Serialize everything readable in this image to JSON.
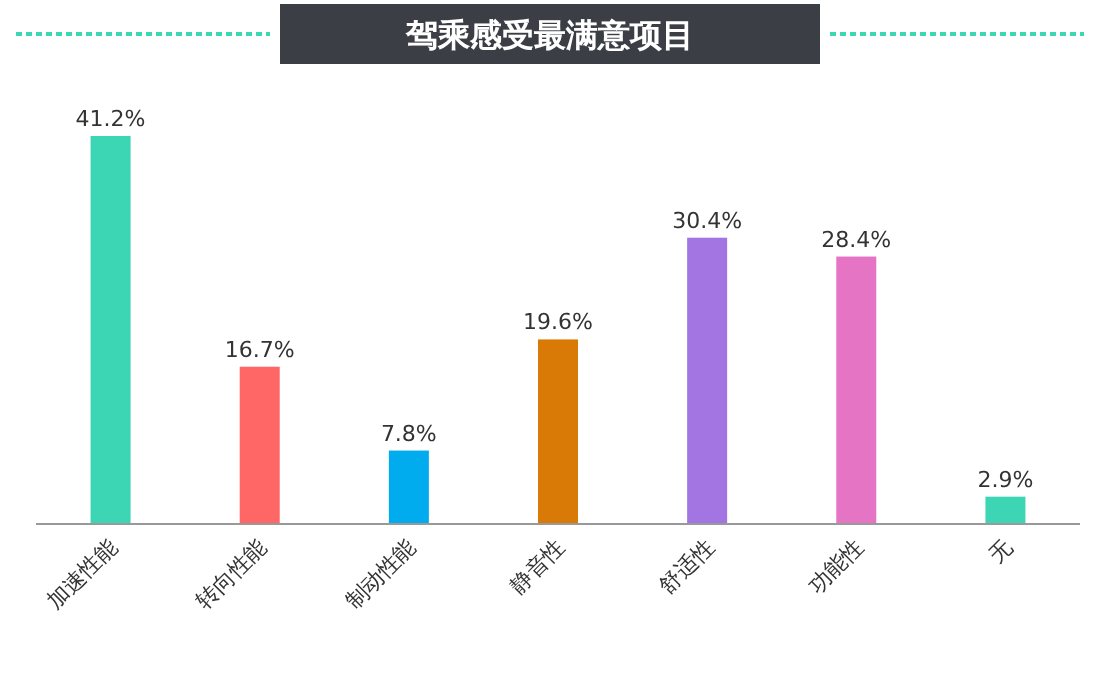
{
  "chart_data": {
    "type": "bar",
    "title": "驾乘感受最满意项目",
    "categories": [
      "加速性能",
      "转向性能",
      "制动性能",
      "静音性",
      "舒适性",
      "功能性",
      "无"
    ],
    "values": [
      41.2,
      16.7,
      7.8,
      19.6,
      30.4,
      28.4,
      2.9
    ],
    "colors": [
      "#3dd6b4",
      "#ff6666",
      "#00aced",
      "#d97a06",
      "#a275e3",
      "#e674c4",
      "#3dd6b4"
    ],
    "value_labels": [
      "41.2%",
      "16.7%",
      "7.8%",
      "19.6%",
      "30.4%",
      "28.4%",
      "2.9%"
    ]
  }
}
